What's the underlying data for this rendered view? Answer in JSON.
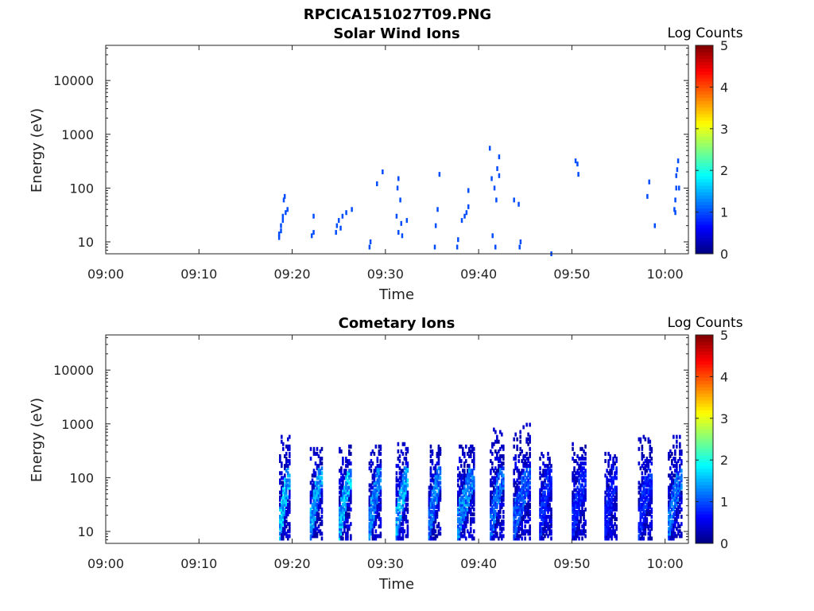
{
  "figure": {
    "title": "RPCICA151027T09.PNG"
  },
  "colormap": [
    "#00007f",
    "#0000ff",
    "#007fff",
    "#00ffff",
    "#7fff7f",
    "#ffff00",
    "#ff7f00",
    "#ff0000",
    "#7f0000"
  ],
  "chart_data": [
    {
      "type": "heatmap",
      "title": "Solar Wind Ions",
      "xlabel": "Time",
      "ylabel": "Energy (eV)",
      "x_ticks": [
        "09:00",
        "09:10",
        "09:20",
        "09:30",
        "09:40",
        "09:50",
        "10:00"
      ],
      "x_range_minutes": [
        0,
        62.5
      ],
      "y_scale": "log",
      "y_ticks": [
        10,
        100,
        1000,
        10000
      ],
      "y_tick_labels": [
        "10",
        "100",
        "1000",
        "10000"
      ],
      "y_range": [
        6,
        45000
      ],
      "colorbar": {
        "label": "Log Counts",
        "range": [
          0,
          5
        ],
        "ticks": [
          "0",
          "1",
          "2",
          "3",
          "4",
          "5"
        ]
      },
      "cells": [
        [
          18.6,
          12,
          1
        ],
        [
          18.6,
          14,
          1
        ],
        [
          18.8,
          16,
          1
        ],
        [
          18.8,
          20,
          1
        ],
        [
          19.0,
          25,
          1
        ],
        [
          19.0,
          30,
          1
        ],
        [
          19.1,
          60,
          1
        ],
        [
          19.2,
          70,
          1
        ],
        [
          19.3,
          35,
          1
        ],
        [
          19.5,
          40,
          1
        ],
        [
          22.1,
          13,
          1
        ],
        [
          22.3,
          15,
          1
        ],
        [
          22.3,
          30,
          1
        ],
        [
          24.7,
          15,
          1
        ],
        [
          24.8,
          20,
          1
        ],
        [
          25.0,
          25,
          1
        ],
        [
          25.2,
          18,
          1
        ],
        [
          25.4,
          30,
          1
        ],
        [
          25.8,
          35,
          1
        ],
        [
          26.4,
          40,
          1
        ],
        [
          28.3,
          8,
          1
        ],
        [
          28.4,
          10,
          1
        ],
        [
          29.1,
          120,
          1
        ],
        [
          29.7,
          200,
          1
        ],
        [
          31.2,
          30,
          1
        ],
        [
          31.3,
          100,
          1
        ],
        [
          31.4,
          150,
          1
        ],
        [
          31.4,
          15,
          1
        ],
        [
          31.6,
          60,
          1
        ],
        [
          31.7,
          22,
          1
        ],
        [
          31.8,
          13,
          1
        ],
        [
          32.3,
          25,
          1
        ],
        [
          35.3,
          8,
          1
        ],
        [
          35.4,
          20,
          1
        ],
        [
          35.6,
          40,
          1
        ],
        [
          35.8,
          180,
          1
        ],
        [
          37.7,
          8,
          1
        ],
        [
          37.8,
          11,
          1
        ],
        [
          38.2,
          25,
          1
        ],
        [
          38.5,
          30,
          1
        ],
        [
          38.7,
          35,
          1
        ],
        [
          38.9,
          90,
          1
        ],
        [
          38.9,
          45,
          1
        ],
        [
          41.2,
          550,
          1
        ],
        [
          41.4,
          150,
          1
        ],
        [
          41.5,
          13,
          1
        ],
        [
          41.7,
          100,
          1
        ],
        [
          41.9,
          60,
          1
        ],
        [
          42.0,
          230,
          1
        ],
        [
          42.2,
          170,
          1
        ],
        [
          42.2,
          380,
          1
        ],
        [
          41.8,
          8,
          1
        ],
        [
          43.8,
          60,
          1
        ],
        [
          44.3,
          50,
          1
        ],
        [
          44.4,
          8,
          1
        ],
        [
          44.5,
          10,
          1
        ],
        [
          47.8,
          6,
          1
        ],
        [
          50.4,
          320,
          1
        ],
        [
          50.6,
          280,
          1
        ],
        [
          50.7,
          180,
          1
        ],
        [
          58.1,
          70,
          1
        ],
        [
          58.3,
          130,
          1
        ],
        [
          58.9,
          20,
          1
        ],
        [
          61.0,
          40,
          1
        ],
        [
          61.1,
          60,
          1
        ],
        [
          61.2,
          100,
          1
        ],
        [
          61.2,
          170,
          1
        ],
        [
          61.3,
          220,
          1
        ],
        [
          61.4,
          320,
          1
        ],
        [
          61.5,
          100,
          1
        ],
        [
          61.1,
          35,
          1
        ]
      ]
    },
    {
      "type": "heatmap",
      "title": "Cometary Ions",
      "xlabel": "Time",
      "ylabel": "Energy (eV)",
      "x_ticks": [
        "09:00",
        "09:10",
        "09:20",
        "09:30",
        "09:40",
        "09:50",
        "10:00"
      ],
      "x_range_minutes": [
        0,
        62.5
      ],
      "y_scale": "log",
      "y_ticks": [
        10,
        100,
        1000,
        10000
      ],
      "y_tick_labels": [
        "10",
        "100",
        "1000",
        "10000"
      ],
      "y_range": [
        6,
        45000
      ],
      "colorbar": {
        "label": "Log Counts",
        "range": [
          0,
          5
        ],
        "ticks": [
          "0",
          "1",
          "2",
          "3",
          "4",
          "5"
        ]
      },
      "bursts": [
        {
          "t": 18.7,
          "w": 1.2,
          "emin": 7,
          "emax": 700,
          "peak": 1.9
        },
        {
          "t": 22.0,
          "w": 1.4,
          "emin": 7,
          "emax": 400,
          "peak": 1.7
        },
        {
          "t": 25.1,
          "w": 1.4,
          "emin": 7,
          "emax": 400,
          "peak": 1.9
        },
        {
          "t": 28.3,
          "w": 1.3,
          "emin": 7,
          "emax": 400,
          "peak": 1.6
        },
        {
          "t": 31.2,
          "w": 1.4,
          "emin": 7,
          "emax": 450,
          "peak": 1.8
        },
        {
          "t": 34.7,
          "w": 1.3,
          "emin": 7,
          "emax": 400,
          "peak": 1.5
        },
        {
          "t": 37.8,
          "w": 1.8,
          "emin": 7,
          "emax": 400,
          "peak": 1.6
        },
        {
          "t": 41.3,
          "w": 1.5,
          "emin": 7,
          "emax": 800,
          "peak": 1.4
        },
        {
          "t": 43.8,
          "w": 1.8,
          "emin": 7,
          "emax": 2000,
          "peak": 1.3
        },
        {
          "t": 46.6,
          "w": 1.3,
          "emin": 7,
          "emax": 300,
          "peak": 1.0
        },
        {
          "t": 50.1,
          "w": 1.5,
          "emin": 7,
          "emax": 450,
          "peak": 1.0
        },
        {
          "t": 53.6,
          "w": 1.4,
          "emin": 7,
          "emax": 300,
          "peak": 0.9
        },
        {
          "t": 57.2,
          "w": 1.6,
          "emin": 7,
          "emax": 600,
          "peak": 1.0
        },
        {
          "t": 60.4,
          "w": 1.5,
          "emin": 7,
          "emax": 700,
          "peak": 1.4
        }
      ]
    }
  ]
}
